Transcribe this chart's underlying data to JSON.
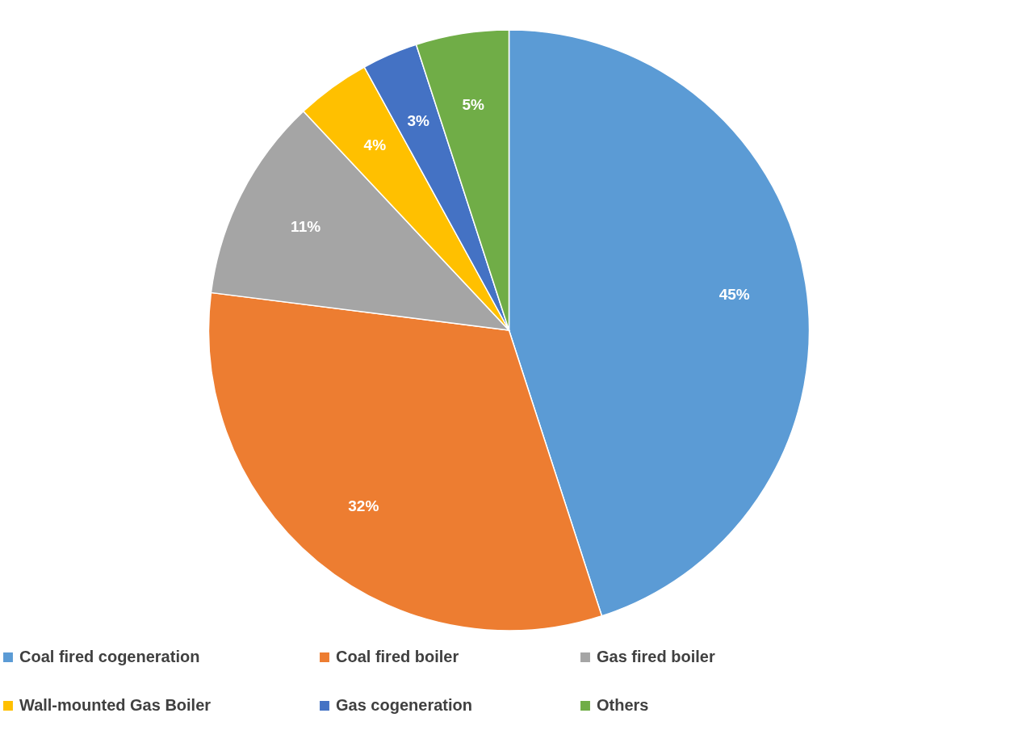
{
  "chart_data": {
    "type": "pie",
    "categories": [
      "Coal fired cogeneration",
      "Coal fired boiler",
      "Gas fired boiler",
      "Wall-mounted Gas Boiler",
      "Gas cogeneration",
      "Others"
    ],
    "values": [
      45,
      32,
      11,
      4,
      3,
      5
    ],
    "colors": [
      "#5b9bd5",
      "#ed7d31",
      "#a5a5a5",
      "#ffc000",
      "#4472c4",
      "#70ad47"
    ],
    "value_labels": [
      "45%",
      "32%",
      "11%",
      "4%",
      "3%",
      "5%"
    ],
    "legend": "bottom"
  }
}
